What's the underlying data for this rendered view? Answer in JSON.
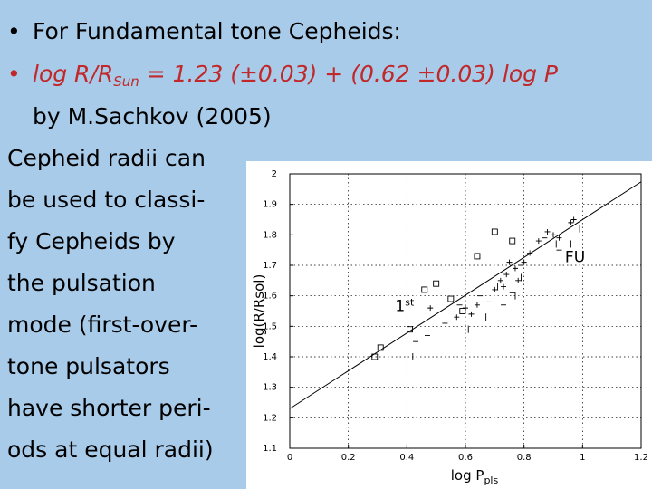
{
  "slide": {
    "bullet1_marker": "•",
    "bullet1_text": "For Fundamental tone Cepheids:",
    "bullet2_marker": "•",
    "formula_main": "log R/R",
    "formula_sub": "Sun",
    "formula_rest": " = 1.23 (±0.03) + (0.62 ±0.03) log P",
    "attribution": "by M.Sachkov (2005)",
    "body_lines": [
      "Cepheid radii can",
      "be used to classi-",
      "fy Cepheids by",
      "the pulsation",
      "mode (first-over-",
      "tone pulsators",
      "have shorter peri-",
      "ods at equal radii)"
    ]
  },
  "colors": {
    "background": "#a8cbe9",
    "formula": "#c0282a",
    "plot_bg": "#ffffff"
  },
  "chart_data": {
    "type": "scatter",
    "xlabel": "log P",
    "xlabel_sub": "pls",
    "ylabel": "log(R/Rsol)",
    "xlim": [
      0,
      1.2
    ],
    "ylim": [
      1.1,
      2.0
    ],
    "xticks": [
      0,
      0.2,
      0.4,
      0.6,
      0.8,
      1,
      1.2
    ],
    "yticks": [
      1.1,
      1.2,
      1.3,
      1.4,
      1.5,
      1.6,
      1.7,
      1.8,
      1.9,
      2
    ],
    "grid": true,
    "fit_line": {
      "intercept": 1.23,
      "slope": 0.62,
      "x": [
        0,
        1.2
      ]
    },
    "annotations": [
      {
        "text": "1",
        "sup": "st",
        "x": 0.36,
        "y": 1.55
      },
      {
        "text": "FU",
        "x": 0.94,
        "y": 1.71
      }
    ],
    "series": [
      {
        "marker": "square",
        "points": [
          [
            0.29,
            1.4
          ],
          [
            0.31,
            1.43
          ],
          [
            0.41,
            1.49
          ],
          [
            0.46,
            1.62
          ],
          [
            0.5,
            1.64
          ],
          [
            0.55,
            1.59
          ],
          [
            0.59,
            1.55
          ],
          [
            0.64,
            1.73
          ],
          [
            0.7,
            1.81
          ],
          [
            0.76,
            1.78
          ]
        ]
      },
      {
        "marker": "plus",
        "points": [
          [
            0.48,
            1.56
          ],
          [
            0.57,
            1.53
          ],
          [
            0.6,
            1.56
          ],
          [
            0.62,
            1.54
          ],
          [
            0.64,
            1.57
          ],
          [
            0.7,
            1.62
          ],
          [
            0.72,
            1.65
          ],
          [
            0.73,
            1.63
          ],
          [
            0.74,
            1.67
          ],
          [
            0.75,
            1.71
          ],
          [
            0.77,
            1.69
          ],
          [
            0.78,
            1.65
          ],
          [
            0.8,
            1.71
          ],
          [
            0.82,
            1.74
          ],
          [
            0.85,
            1.78
          ],
          [
            0.88,
            1.81
          ],
          [
            0.9,
            1.8
          ],
          [
            0.92,
            1.79
          ],
          [
            0.96,
            1.84
          ],
          [
            0.97,
            1.85
          ]
        ]
      },
      {
        "marker": "dash",
        "points": [
          [
            0.43,
            1.45
          ],
          [
            0.47,
            1.47
          ],
          [
            0.53,
            1.51
          ],
          [
            0.58,
            1.57
          ],
          [
            0.65,
            1.6
          ],
          [
            0.68,
            1.58
          ],
          [
            0.73,
            1.57
          ],
          [
            0.76,
            1.61
          ],
          [
            0.79,
            1.7
          ],
          [
            0.87,
            1.79
          ],
          [
            0.92,
            1.75
          ]
        ]
      },
      {
        "marker": "vbar",
        "points": [
          [
            0.42,
            1.4
          ],
          [
            0.61,
            1.49
          ],
          [
            0.67,
            1.53
          ],
          [
            0.71,
            1.63
          ],
          [
            0.77,
            1.6
          ],
          [
            0.79,
            1.66
          ],
          [
            0.91,
            1.77
          ],
          [
            0.96,
            1.77
          ],
          [
            0.99,
            1.82
          ]
        ]
      }
    ]
  }
}
